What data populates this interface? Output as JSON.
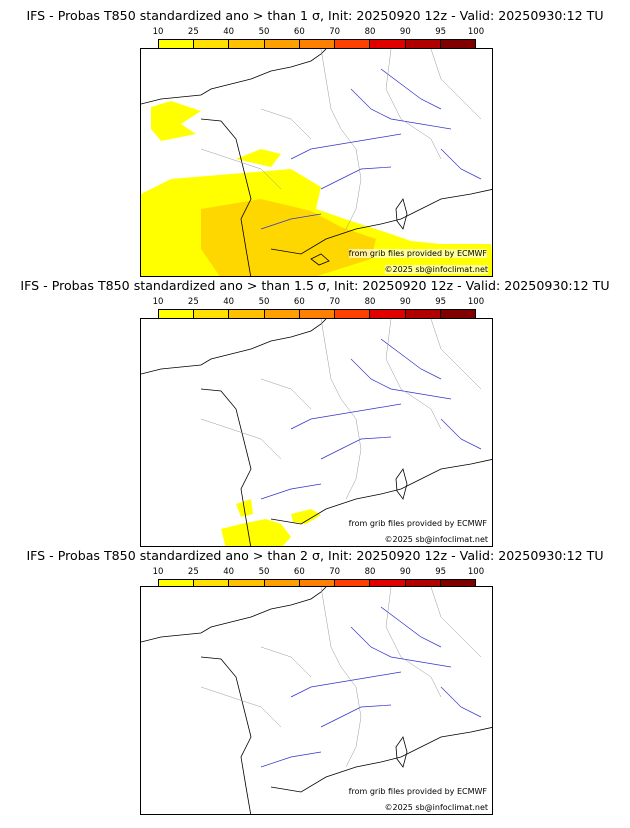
{
  "colorbar": {
    "ticks": [
      "10",
      "25",
      "40",
      "50",
      "60",
      "70",
      "80",
      "90",
      "95",
      "100"
    ],
    "colors": [
      "#ffff00",
      "#ffe000",
      "#ffc000",
      "#ffa000",
      "#ff7f00",
      "#ff4000",
      "#e00000",
      "#b00000",
      "#800000"
    ]
  },
  "panels": [
    {
      "title": "IFS - Probas T850  standardized ano > than 1 σ, Init: 20250920 12z - Valid: 20250930:12 TU",
      "threshold": "1 σ",
      "credit_source": "from grib files provided by ECMWF",
      "credit_copyright": "©2025 sb@infoclimat.net"
    },
    {
      "title": "IFS - Probas T850  standardized ano > than 1.5 σ, Init: 20250920 12z - Valid: 20250930:12 TU",
      "threshold": "1.5 σ",
      "credit_source": "from grib files provided by ECMWF",
      "credit_copyright": "©2025 sb@infoclimat.net"
    },
    {
      "title": "IFS - Probas T850  standardized ano > than 2 σ, Init: 20250920 12z - Valid: 20250930:12 TU",
      "threshold": "2 σ",
      "credit_source": "from grib files provided by ECMWF",
      "credit_copyright": "©2025 sb@infoclimat.net"
    }
  ],
  "colors": {
    "coastline": "#000000",
    "rivers": "#3333cc",
    "borders": "#999999",
    "prob_low": "#ffff00",
    "prob_mid": "#ffd700"
  }
}
